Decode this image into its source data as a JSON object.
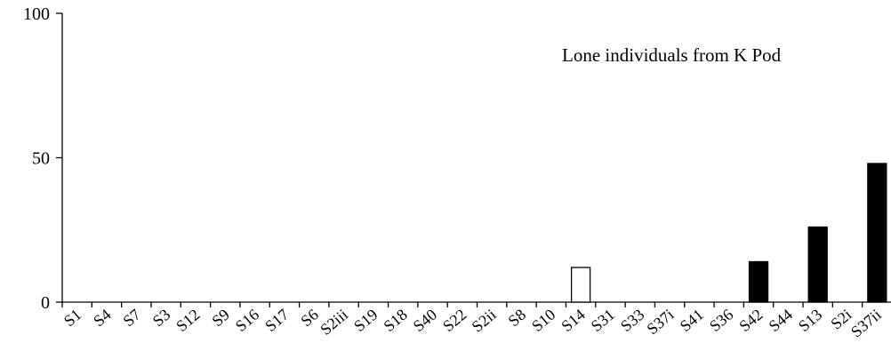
{
  "chart_data": {
    "type": "bar",
    "title": "",
    "annotation": "Lone individuals from K Pod",
    "xlabel": "",
    "ylabel": "",
    "ylim": [
      0,
      100
    ],
    "yticks": [
      0,
      50,
      100
    ],
    "grid": false,
    "categories": [
      "S1",
      "S4",
      "S7",
      "S3",
      "S12",
      "S9",
      "S16",
      "S17",
      "S6",
      "S2iii",
      "S19",
      "S18",
      "S40",
      "S22",
      "S2ii",
      "S8",
      "S10",
      "S14",
      "S31",
      "S33",
      "S37i",
      "S41",
      "S36",
      "S42",
      "S44",
      "S13",
      "S2i",
      "S37ii"
    ],
    "values": [
      0,
      0,
      0,
      0,
      0,
      0,
      0,
      0,
      0,
      0,
      0,
      0,
      0,
      0,
      0,
      0,
      0,
      12,
      0,
      0,
      0,
      0,
      0,
      14,
      0,
      26,
      0,
      48
    ],
    "fills": [
      "#000000",
      "#000000",
      "#000000",
      "#000000",
      "#000000",
      "#000000",
      "#000000",
      "#000000",
      "#000000",
      "#000000",
      "#000000",
      "#000000",
      "#000000",
      "#000000",
      "#000000",
      "#000000",
      "#000000",
      "#ffffff",
      "#000000",
      "#000000",
      "#000000",
      "#000000",
      "#000000",
      "#000000",
      "#000000",
      "#000000",
      "#000000",
      "#000000"
    ]
  }
}
